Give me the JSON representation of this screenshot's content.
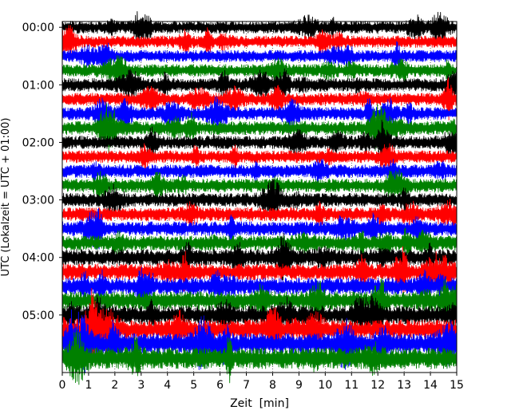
{
  "chart_data": {
    "type": "line",
    "subtype": "seismic-helicorder",
    "title": "",
    "xlabel": "Zeit  [min]",
    "ylabel": "UTC (Lokalzeit = UTC + 01:00)",
    "xlim": [
      0,
      15
    ],
    "x_ticks": [
      0,
      1,
      2,
      3,
      4,
      5,
      6,
      7,
      8,
      9,
      10,
      11,
      12,
      13,
      14,
      15
    ],
    "x_tick_labels": [
      "0",
      "1",
      "2",
      "3",
      "4",
      "5",
      "6",
      "7",
      "8",
      "9",
      "10",
      "11",
      "12",
      "13",
      "14",
      "15"
    ],
    "ylim_hours": [
      -0.1,
      6.0
    ],
    "y_ticks_hours": [
      0,
      1,
      2,
      3,
      4,
      5
    ],
    "y_tick_labels": [
      "00:00",
      "01:00",
      "02:00",
      "03:00",
      "04:00",
      "05:00"
    ],
    "row_interval_minutes": 15,
    "grid": "vertical dotted at every minute",
    "legend": "none",
    "colors": [
      "#000000",
      "#ff0000",
      "#0000ff",
      "#008000"
    ],
    "series": [
      {
        "start": "00:00",
        "color": "#000000",
        "amplitude": 0.42
      },
      {
        "start": "00:15",
        "color": "#ff0000",
        "amplitude": 0.4
      },
      {
        "start": "00:30",
        "color": "#0000ff",
        "amplitude": 0.4
      },
      {
        "start": "00:45",
        "color": "#008000",
        "amplitude": 0.42
      },
      {
        "start": "01:00",
        "color": "#000000",
        "amplitude": 0.44
      },
      {
        "start": "01:15",
        "color": "#ff0000",
        "amplitude": 0.42
      },
      {
        "start": "01:30",
        "color": "#0000ff",
        "amplitude": 0.44
      },
      {
        "start": "01:45",
        "color": "#008000",
        "amplitude": 0.46
      },
      {
        "start": "02:00",
        "color": "#000000",
        "amplitude": 0.44
      },
      {
        "start": "02:15",
        "color": "#ff0000",
        "amplitude": 0.42
      },
      {
        "start": "02:30",
        "color": "#0000ff",
        "amplitude": 0.44
      },
      {
        "start": "02:45",
        "color": "#008000",
        "amplitude": 0.46
      },
      {
        "start": "03:00",
        "color": "#000000",
        "amplitude": 0.46
      },
      {
        "start": "03:15",
        "color": "#ff0000",
        "amplitude": 0.46
      },
      {
        "start": "03:30",
        "color": "#0000ff",
        "amplitude": 0.48
      },
      {
        "start": "03:45",
        "color": "#008000",
        "amplitude": 0.5
      },
      {
        "start": "04:00",
        "color": "#000000",
        "amplitude": 0.55
      },
      {
        "start": "04:15",
        "color": "#ff0000",
        "amplitude": 0.55
      },
      {
        "start": "04:30",
        "color": "#0000ff",
        "amplitude": 0.58
      },
      {
        "start": "04:45",
        "color": "#008000",
        "amplitude": 0.62
      },
      {
        "start": "05:00",
        "color": "#000000",
        "amplitude": 0.62
      },
      {
        "start": "05:15",
        "color": "#ff0000",
        "amplitude": 0.66
      },
      {
        "start": "05:30",
        "color": "#0000ff",
        "amplitude": 0.72
      },
      {
        "start": "05:45",
        "color": "#008000",
        "amplitude": 0.72
      }
    ]
  }
}
